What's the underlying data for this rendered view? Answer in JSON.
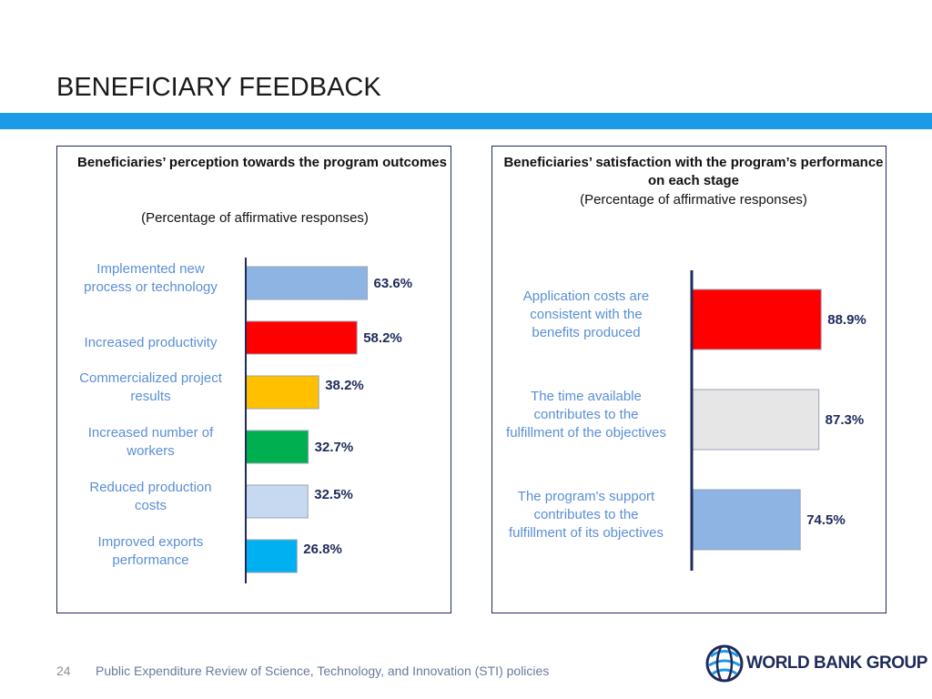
{
  "slide": {
    "title": "BENEFICIARY FEEDBACK",
    "accent_color": "#1b9ae6",
    "footer_page": "24",
    "footer_text": "Public Expenditure Review of Science, Technology, and Innovation (STI) policies",
    "logo_text": "WORLD BANK GROUP"
  },
  "chart_data": [
    {
      "type": "bar",
      "orientation": "horizontal",
      "title": "Beneficiaries’ perception towards the program outcomes",
      "subtitle": "(Percentage of affirmative responses)",
      "categories": [
        "Implemented new process or technology",
        "Increased productivity",
        "Commercialized project results",
        "Increased number of workers",
        "Reduced production costs",
        "Improved exports performance"
      ],
      "values": [
        63.6,
        58.2,
        38.2,
        32.7,
        32.5,
        26.8
      ],
      "value_labels": [
        "63.6%",
        "58.2%",
        "38.2%",
        "32.7%",
        "32.5%",
        "26.8%"
      ],
      "colors": [
        "#8db4e2",
        "#ff0000",
        "#ffc000",
        "#00b050",
        "#c6d9f1",
        "#00b0f0"
      ],
      "label_color": "#5a8fd6",
      "xlim": [
        0,
        100
      ],
      "grid": false
    },
    {
      "type": "bar",
      "orientation": "horizontal",
      "title": "Beneficiaries’ satisfaction with the program’s performance on each stage",
      "subtitle": "(Percentage of affirmative responses)",
      "categories": [
        "Application costs are consistent with the benefits produced",
        "The time available contributes to the fulfillment of the objectives",
        "The program's support contributes to the fulfillment of its objectives"
      ],
      "values": [
        88.9,
        87.3,
        74.5
      ],
      "value_labels": [
        "88.9%",
        "87.3%",
        "74.5%"
      ],
      "colors": [
        "#ff0000",
        "#e6e6e6",
        "#8db4e2"
      ],
      "label_color": "#5a8fd6",
      "xlim": [
        0,
        100
      ],
      "grid": false
    }
  ]
}
